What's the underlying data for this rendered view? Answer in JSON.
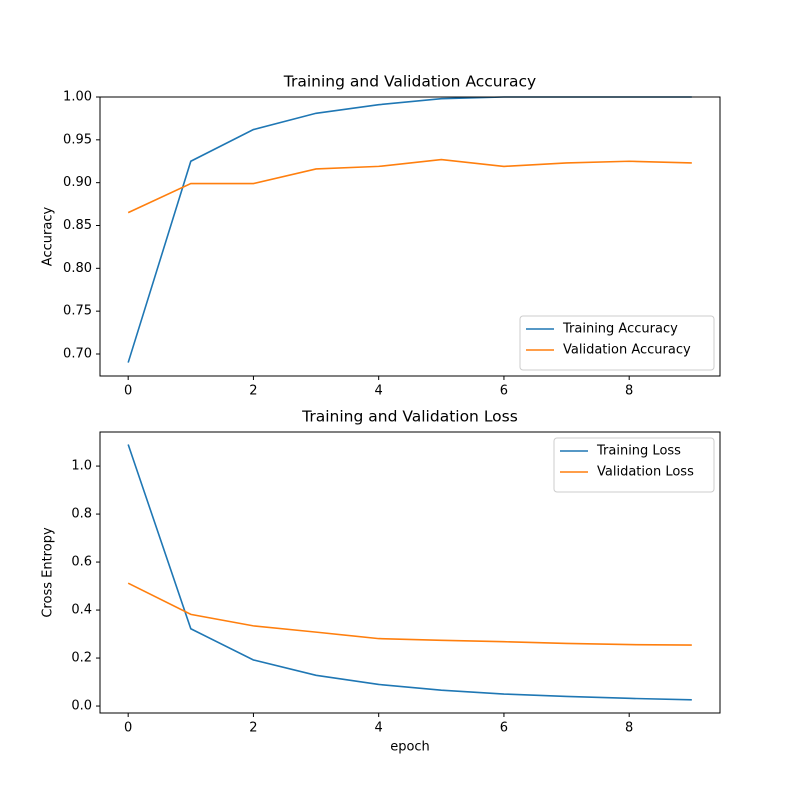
{
  "chart_data": [
    {
      "type": "line",
      "title": "Training and Validation Accuracy",
      "ylabel": "Accuracy",
      "x": [
        0,
        1,
        2,
        3,
        4,
        5,
        6,
        7,
        8,
        9
      ],
      "series": [
        {
          "name": "Training Accuracy",
          "color": "#1f77b4",
          "values": [
            0.69,
            0.925,
            0.962,
            0.981,
            0.991,
            0.998,
            1.0,
            1.0,
            1.0,
            1.0
          ]
        },
        {
          "name": "Validation Accuracy",
          "color": "#ff7f0e",
          "values": [
            0.865,
            0.899,
            0.899,
            0.916,
            0.919,
            0.927,
            0.919,
            0.923,
            0.925,
            0.923
          ]
        }
      ],
      "xlim": [
        -0.45,
        9.45
      ],
      "xticks": [
        0,
        2,
        4,
        6,
        8
      ],
      "ylim": [
        0.6743,
        1.0
      ],
      "yticks": [
        {
          "value": 0.7,
          "label": "0.70"
        },
        {
          "value": 0.75,
          "label": "0.75"
        },
        {
          "value": 0.8,
          "label": "0.80"
        },
        {
          "value": 0.85,
          "label": "0.85"
        },
        {
          "value": 0.9,
          "label": "0.90"
        },
        {
          "value": 0.95,
          "label": "0.95"
        },
        {
          "value": 1.0,
          "label": "1.00"
        }
      ],
      "legend": "lower right"
    },
    {
      "type": "line",
      "title": "Training and Validation Loss",
      "ylabel": "Cross Entropy",
      "xlabel": "epoch",
      "x": [
        0,
        1,
        2,
        3,
        4,
        5,
        6,
        7,
        8,
        9
      ],
      "series": [
        {
          "name": "Training Loss",
          "color": "#1f77b4",
          "values": [
            1.09,
            0.322,
            0.192,
            0.128,
            0.09,
            0.066,
            0.05,
            0.04,
            0.032,
            0.026
          ]
        },
        {
          "name": "Validation Loss",
          "color": "#ff7f0e",
          "values": [
            0.512,
            0.382,
            0.334,
            0.308,
            0.281,
            0.274,
            0.268,
            0.261,
            0.256,
            0.254
          ]
        }
      ],
      "xlim": [
        -0.45,
        9.45
      ],
      "xticks": [
        0,
        2,
        4,
        6,
        8
      ],
      "ylim": [
        -0.029,
        1.142
      ],
      "yticks": [
        {
          "value": 0,
          "label": "0.0"
        },
        {
          "value": 0.2,
          "label": "0.2"
        },
        {
          "value": 0.4,
          "label": "0.4"
        },
        {
          "value": 0.6,
          "label": "0.6"
        },
        {
          "value": 0.8,
          "label": "0.8"
        },
        {
          "value": 1.0,
          "label": "1.0"
        }
      ],
      "legend": "upper right"
    }
  ]
}
